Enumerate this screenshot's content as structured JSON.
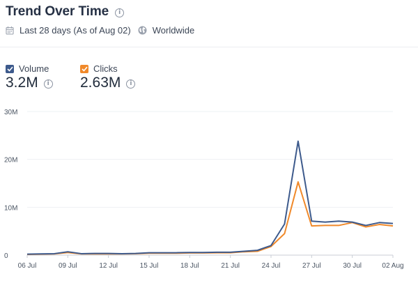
{
  "header": {
    "title": "Trend Over Time",
    "date_range": "Last 28 days (As of Aug 02)",
    "region": "Worldwide"
  },
  "icons": {
    "title_info": "info-icon",
    "date": "calendar-icon",
    "region": "globe-icon"
  },
  "legend": [
    {
      "label": "Volume",
      "value": "3.2M",
      "color": "#3d5a8c",
      "checked": true
    },
    {
      "label": "Clicks",
      "value": "2.63M",
      "color": "#f0892a",
      "checked": true
    }
  ],
  "chart_data": {
    "type": "line",
    "title": "",
    "xlabel": "",
    "ylabel": "",
    "ylim": [
      0,
      30000000
    ],
    "y_ticks": [
      "0",
      "10M",
      "20M",
      "30M"
    ],
    "x_ticks": [
      "06 Jul",
      "09 Jul",
      "12 Jul",
      "15 Jul",
      "18 Jul",
      "21 Jul",
      "24 Jul",
      "27 Jul",
      "30 Jul",
      "02 Aug"
    ],
    "x": [
      "06 Jul",
      "07 Jul",
      "08 Jul",
      "09 Jul",
      "10 Jul",
      "11 Jul",
      "12 Jul",
      "13 Jul",
      "14 Jul",
      "15 Jul",
      "16 Jul",
      "17 Jul",
      "18 Jul",
      "19 Jul",
      "20 Jul",
      "21 Jul",
      "22 Jul",
      "23 Jul",
      "24 Jul",
      "25 Jul",
      "26 Jul",
      "27 Jul",
      "28 Jul",
      "29 Jul",
      "30 Jul",
      "31 Jul",
      "01 Aug",
      "02 Aug"
    ],
    "grid": true,
    "series": [
      {
        "name": "Volume",
        "color": "#3d5a8c",
        "values": [
          200000,
          250000,
          300000,
          700000,
          300000,
          350000,
          350000,
          300000,
          350000,
          500000,
          500000,
          500000,
          550000,
          550000,
          600000,
          600000,
          800000,
          1000000,
          2000000,
          6500000,
          23800000,
          7100000,
          6900000,
          7100000,
          6900000,
          6200000,
          6800000,
          6600000
        ]
      },
      {
        "name": "Clicks",
        "color": "#f0892a",
        "values": [
          150000,
          200000,
          250000,
          550000,
          250000,
          250000,
          250000,
          250000,
          300000,
          400000,
          400000,
          400000,
          450000,
          450000,
          500000,
          500000,
          700000,
          800000,
          1800000,
          4500000,
          15300000,
          6100000,
          6200000,
          6200000,
          6800000,
          5900000,
          6400000,
          6100000
        ]
      }
    ]
  }
}
